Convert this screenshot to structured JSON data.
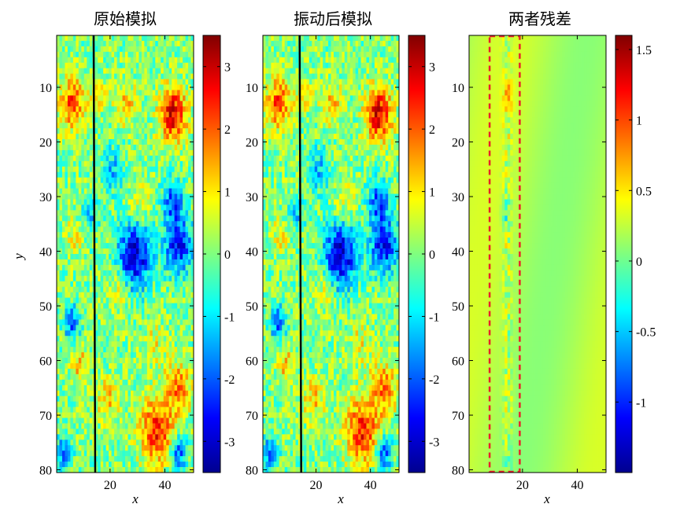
{
  "chart_data": [
    {
      "type": "heatmap",
      "title": "原始模拟",
      "xlabel": "x",
      "ylabel": "y",
      "xlim": [
        0.5,
        50.5
      ],
      "ylim": [
        0.5,
        80.5
      ],
      "y_reversed": true,
      "xticks": [
        20,
        40
      ],
      "yticks": [
        10,
        20,
        30,
        40,
        50,
        60,
        70,
        80
      ],
      "grid": "off",
      "colormap": "jet",
      "clim": [
        -3.5,
        3.5
      ],
      "colorbar_ticks": [
        3,
        2,
        1,
        0,
        -1,
        -2,
        -3
      ],
      "annotation": {
        "type": "vertical-line",
        "x": 14,
        "color": "#000000"
      }
    },
    {
      "type": "heatmap",
      "title": "振动后模拟",
      "xlabel": "x",
      "ylabel": "",
      "xlim": [
        0.5,
        50.5
      ],
      "ylim": [
        0.5,
        80.5
      ],
      "y_reversed": true,
      "xticks": [
        20,
        40
      ],
      "yticks": [
        10,
        20,
        30,
        40,
        50,
        60,
        70,
        80
      ],
      "grid": "off",
      "colormap": "jet",
      "clim": [
        -3.5,
        3.5
      ],
      "colorbar_ticks": [
        3,
        2,
        1,
        0,
        -1,
        -2,
        -3
      ],
      "annotation": {
        "type": "vertical-line",
        "x": 14,
        "color": "#000000"
      }
    },
    {
      "type": "heatmap",
      "title": "两者残差",
      "xlabel": "x",
      "ylabel": "",
      "xlim": [
        0.5,
        50.5
      ],
      "ylim": [
        0.5,
        80.5
      ],
      "y_reversed": true,
      "xticks": [
        20,
        40
      ],
      "yticks": [
        10,
        20,
        30,
        40,
        50,
        60,
        70,
        80
      ],
      "grid": "off",
      "colormap": "jet",
      "clim": [
        -1.5,
        1.6
      ],
      "colorbar_ticks": [
        1.5,
        1,
        0.5,
        0,
        -0.5,
        -1
      ],
      "annotation": {
        "type": "dashed-rectangle",
        "x_range": [
          8,
          19
        ],
        "y_range": [
          0.5,
          80.5
        ],
        "color": "#e8202a"
      }
    }
  ]
}
